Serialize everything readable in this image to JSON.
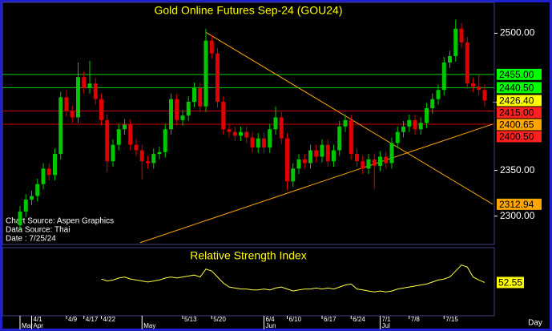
{
  "chart_data": {
    "type": "candlestick",
    "title": "Gold Online Futures Sep-24 (GOU24)",
    "ylim": [
      2269,
      2532
    ],
    "yticks": [
      {
        "value": 2500,
        "label": "2500.00"
      },
      {
        "value": 2350,
        "label": "2350.00"
      },
      {
        "value": 2300,
        "label": "2300.00"
      }
    ],
    "categories": [
      null,
      null,
      "4/1",
      null,
      null,
      null,
      null,
      null,
      "4/9",
      null,
      null,
      "4/17",
      null,
      null,
      "4/22",
      null,
      null,
      null,
      null,
      null,
      null,
      null,
      null,
      null,
      null,
      null,
      null,
      null,
      "5/13",
      null,
      null,
      null,
      null,
      "5/20",
      null,
      null,
      null,
      null,
      null,
      null,
      null,
      null,
      "6/4",
      null,
      null,
      null,
      "6/10",
      null,
      null,
      null,
      null,
      null,
      "6/17",
      null,
      null,
      null,
      null,
      "6/24",
      null,
      null,
      null,
      null,
      "7/1",
      null,
      null,
      null,
      null,
      "7/8",
      null,
      null,
      null,
      null,
      null,
      "7/15",
      null,
      null,
      null,
      null,
      null,
      null,
      null
    ],
    "months": [
      "Mar",
      null,
      "Apr",
      null,
      null,
      null,
      null,
      null,
      null,
      null,
      null,
      null,
      null,
      null,
      null,
      null,
      null,
      null,
      null,
      null,
      null,
      "May",
      null,
      null,
      null,
      null,
      null,
      null,
      null,
      null,
      null,
      null,
      null,
      null,
      null,
      null,
      null,
      null,
      null,
      null,
      null,
      null,
      "Jun",
      null,
      null,
      null,
      null,
      null,
      null,
      null,
      null,
      null,
      null,
      null,
      null,
      null,
      null,
      null,
      null,
      null,
      null,
      null,
      "Jul",
      null,
      null,
      null,
      null,
      null,
      null,
      null,
      null,
      null,
      null,
      null,
      null,
      null,
      null,
      null,
      null,
      null,
      null
    ],
    "open": [
      2290,
      2305,
      2318,
      2322,
      2335,
      2352,
      2345,
      2368,
      2430,
      2415,
      2408,
      2452,
      2440,
      2445,
      2428,
      2405,
      2360,
      2378,
      2395,
      2400,
      2378,
      2372,
      2360,
      2358,
      2368,
      2370,
      2395,
      2428,
      2405,
      2410,
      2425,
      2440,
      2420,
      2492,
      2478,
      2425,
      2395,
      2392,
      2388,
      2392,
      2386,
      2375,
      2385,
      2375,
      2395,
      2408,
      2385,
      2338,
      2352,
      2362,
      2358,
      2372,
      2365,
      2378,
      2360,
      2372,
      2398,
      2405,
      2368,
      2360,
      2352,
      2362,
      2355,
      2365,
      2358,
      2380,
      2392,
      2398,
      2405,
      2395,
      2402,
      2418,
      2428,
      2438,
      2468,
      2475,
      2505,
      2490,
      2445,
      2442,
      2438
    ],
    "high": [
      2311,
      2324,
      2328,
      2341,
      2358,
      2358,
      2374,
      2436,
      2438,
      2421,
      2468,
      2458,
      2470,
      2451,
      2434,
      2411,
      2384,
      2401,
      2406,
      2406,
      2384,
      2378,
      2366,
      2374,
      2376,
      2401,
      2434,
      2434,
      2416,
      2431,
      2446,
      2446,
      2505,
      2498,
      2484,
      2431,
      2401,
      2398,
      2398,
      2398,
      2392,
      2391,
      2391,
      2401,
      2420,
      2414,
      2391,
      2358,
      2368,
      2368,
      2378,
      2378,
      2384,
      2384,
      2378,
      2404,
      2411,
      2411,
      2374,
      2366,
      2368,
      2368,
      2371,
      2371,
      2386,
      2398,
      2404,
      2411,
      2411,
      2408,
      2424,
      2434,
      2444,
      2474,
      2481,
      2515,
      2511,
      2496,
      2451,
      2455,
      2444
    ],
    "low": [
      2284,
      2299,
      2312,
      2316,
      2329,
      2339,
      2339,
      2362,
      2409,
      2402,
      2402,
      2434,
      2434,
      2422,
      2399,
      2348,
      2354,
      2372,
      2389,
      2372,
      2366,
      2340,
      2352,
      2352,
      2362,
      2364,
      2389,
      2399,
      2399,
      2404,
      2419,
      2414,
      2414,
      2472,
      2419,
      2389,
      2386,
      2382,
      2382,
      2380,
      2369,
      2369,
      2369,
      2369,
      2389,
      2379,
      2328,
      2332,
      2346,
      2352,
      2352,
      2359,
      2359,
      2354,
      2354,
      2366,
      2392,
      2362,
      2354,
      2346,
      2346,
      2330,
      2349,
      2352,
      2352,
      2374,
      2386,
      2392,
      2389,
      2389,
      2396,
      2412,
      2422,
      2432,
      2462,
      2469,
      2484,
      2439,
      2436,
      2432,
      2420
    ],
    "close": [
      2305,
      2318,
      2322,
      2335,
      2352,
      2345,
      2368,
      2430,
      2415,
      2408,
      2452,
      2440,
      2445,
      2428,
      2405,
      2360,
      2378,
      2395,
      2400,
      2378,
      2372,
      2360,
      2358,
      2368,
      2370,
      2395,
      2428,
      2405,
      2410,
      2425,
      2440,
      2420,
      2492,
      2478,
      2425,
      2395,
      2392,
      2388,
      2392,
      2386,
      2375,
      2385,
      2375,
      2395,
      2408,
      2385,
      2338,
      2352,
      2362,
      2358,
      2372,
      2365,
      2378,
      2360,
      2372,
      2398,
      2405,
      2368,
      2360,
      2352,
      2362,
      2355,
      2365,
      2358,
      2380,
      2392,
      2398,
      2405,
      2395,
      2402,
      2418,
      2428,
      2438,
      2468,
      2475,
      2505,
      2490,
      2445,
      2442,
      2438,
      2426.4
    ],
    "last_label": "2426.40",
    "up_color": "#00c800",
    "down_color": "#e00000",
    "levels": [
      {
        "value": 2455,
        "label": "2455.00",
        "color": "#00d000",
        "tag": "#00ff00"
      },
      {
        "value": 2440.5,
        "label": "2440.50",
        "color": "#00d000",
        "tag": "#00ff00"
      },
      {
        "value": 2415,
        "label": "2415.00",
        "color": "#d00000",
        "tag": "#ff2020"
      },
      {
        "value": 2400.5,
        "label": "2400.50",
        "color": "#d00000",
        "tag": "#ff2020"
      }
    ],
    "trendlines": [
      {
        "start_x": 32,
        "start": 2501,
        "end_x": 81.4,
        "end": 2312.94,
        "color": "#ffa500"
      },
      {
        "start_x": 20.7,
        "start": 2271,
        "end_x": 81.4,
        "end": 2400.65,
        "color": "#ffa500"
      }
    ],
    "notes": [
      "Chart Source: Aspen Graphics",
      "Data Source: Thai",
      "Date : 7/25/24"
    ],
    "x_label": "Day",
    "rsi": {
      "title": "Relative Strength Index",
      "ylim": [
        20,
        85
      ],
      "color": "#ffff40",
      "value_label": "52.55",
      "values": [
        null,
        null,
        null,
        null,
        null,
        null,
        null,
        null,
        null,
        null,
        null,
        null,
        null,
        null,
        56,
        54,
        55,
        57,
        58,
        56,
        55,
        54,
        53,
        54,
        55,
        57,
        58,
        57,
        58,
        59,
        60,
        58,
        66,
        64,
        58,
        52,
        48,
        47,
        46,
        46,
        45,
        45,
        46,
        45,
        47,
        48,
        46,
        44,
        45,
        46,
        46,
        47,
        46,
        47,
        46,
        48,
        50,
        51,
        46,
        45,
        44,
        43,
        44,
        43,
        44,
        46,
        47,
        48,
        49,
        50,
        51,
        53,
        55,
        56,
        58,
        64,
        70,
        68,
        58,
        55,
        52.55
      ]
    }
  }
}
